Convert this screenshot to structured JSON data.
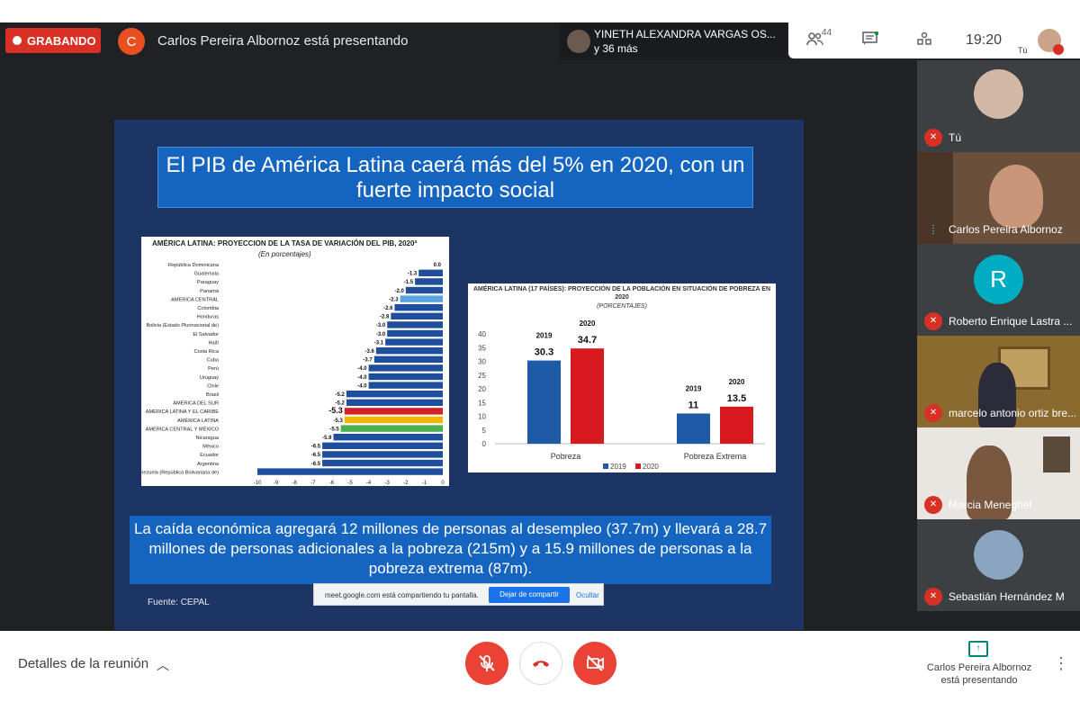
{
  "topbar": {
    "recording_label": "GRABANDO",
    "presenter_initial": "C",
    "presenting_text": "Carlos Pereira Albornoz está presentando",
    "participant_chip_line1": "YINETH ALEXANDRA VARGAS OS...",
    "participant_chip_line2": "y 36 más",
    "participant_count": "44",
    "clock": "19:20",
    "me_label": "Tú"
  },
  "slide": {
    "title": "El PIB de América Latina  caerá más del 5% en 2020, con un fuerte impacto social",
    "body_text": "La caída económica agregará 12 millones de personas al desempleo (37.7m) y llevará a 28.7 millones de personas adicionales a la pobreza (215m) y a 15.9 millones de personas a la pobreza extrema (87m).",
    "source": "Fuente: CEPAL",
    "chartA_title": "AMÉRICA LATINA: PROYECCION DE LA TASA DE VARIACIÓN DEL PIB, 2020ª",
    "chartA_subtitle": "(En porcentajes)",
    "chartB_title": "AMÉRICA LATINA (17 PAÍSES): PROYECCIÓN DE LA POBLACIÓN EN SITUACIÓN DE POBREZA EN 2020",
    "chartB_subtitle": "(PORCENTAJES)"
  },
  "chart_data": [
    {
      "type": "bar",
      "orientation": "horizontal",
      "title": "AMÉRICA LATINA: PROYECCION DE LA TASA DE VARIACIÓN DEL PIB, 2020ª",
      "subtitle": "(En porcentajes)",
      "categories": [
        "República Dominicana",
        "Guatemala",
        "Paraguay",
        "Panamá",
        "AMÉRICA CENTRAL",
        "Colombia",
        "Honduras",
        "Bolivia (Estado Plurinacional de)",
        "El Salvador",
        "Haití",
        "Costa Rica",
        "Cuba",
        "Perú",
        "Uruguay",
        "Chile",
        "Brasil",
        "AMÉRICA DEL SUR",
        "AMÉRICA LATINA Y EL CARIBE",
        "AMÉRICA LATINA",
        "AMÉRICA CENTRAL Y MÉXICO",
        "Nicaragua",
        "México",
        "Ecuador",
        "Argentina",
        "Venezuela (República Bolivariana de)"
      ],
      "values": [
        0.0,
        -1.3,
        -1.5,
        -2.0,
        -2.3,
        -2.6,
        -2.8,
        -3.0,
        -3.0,
        -3.1,
        -3.6,
        -3.7,
        -4.0,
        -4.0,
        -4.0,
        -5.2,
        -5.2,
        -5.3,
        -5.3,
        -5.5,
        -5.9,
        -6.5,
        -6.5,
        -6.5,
        -10
      ],
      "value_labels": [
        "0.0",
        "-1.3",
        "-1.5",
        "-2.0",
        "-2.3",
        "-2.6",
        "-2.8",
        "-3.0",
        "-3.0",
        "-3.1",
        "-3.6",
        "-3.7",
        "-4.0",
        "-4.0",
        "-4.0",
        "-5.2",
        "-5.2",
        "-5.3",
        "-5.3",
        "-5.5",
        "-5.9",
        "-6.5",
        "-6.5",
        "-6.5",
        ""
      ],
      "bar_colors": [
        "#1f4e9c",
        "#1f4e9c",
        "#1f4e9c",
        "#1f4e9c",
        "#5ba3dc",
        "#1f4e9c",
        "#1f4e9c",
        "#1f4e9c",
        "#1f4e9c",
        "#1f4e9c",
        "#1f4e9c",
        "#1f4e9c",
        "#1f4e9c",
        "#1f4e9c",
        "#1f4e9c",
        "#1f4e9c",
        "#1f4e9c",
        "#d71f26",
        "#f2b705",
        "#4caf50",
        "#1f4e9c",
        "#1f4e9c",
        "#1f4e9c",
        "#1f4e9c",
        "#1f4e9c"
      ],
      "xticks": [
        "-10",
        "-9",
        "-8",
        "-7",
        "-6",
        "-5",
        "-4",
        "-3",
        "-2",
        "-1",
        "0"
      ],
      "xlim": [
        -10,
        0
      ]
    },
    {
      "type": "bar",
      "title": "AMÉRICA LATINA (17 PAÍSES): PROYECCIÓN DE LA POBLACIÓN EN SITUACIÓN DE POBREZA EN 2020",
      "subtitle": "(PORCENTAJES)",
      "categories": [
        "Pobreza",
        "Pobreza Extrema"
      ],
      "series": [
        {
          "name": "2019",
          "values": [
            30.3,
            11
          ],
          "color": "#1f5aa6"
        },
        {
          "name": "2020",
          "values": [
            34.7,
            13.5
          ],
          "color": "#d71920"
        }
      ],
      "value_labels": [
        [
          "30.3",
          "11"
        ],
        [
          "34.7",
          "13.5"
        ]
      ],
      "yticks": [
        "0",
        "5",
        "10",
        "15",
        "20",
        "25",
        "30",
        "35",
        "40"
      ],
      "ylim": [
        0,
        40
      ],
      "legend": "bottom"
    }
  ],
  "share_bar": {
    "message": "meet.google.com está compartiendo tu pantalla.",
    "stop_label": "Dejar de compartir",
    "hide_label": "Ocultar"
  },
  "participants": [
    {
      "name": "Tú",
      "initial": ""
    },
    {
      "name": "Carlos Pereira Albornoz",
      "initial": ""
    },
    {
      "name": "Roberto Enrique Lastra ...",
      "initial": "R"
    },
    {
      "name": "marcelo antonio ortiz bre...",
      "initial": ""
    },
    {
      "name": "Marcia Meneghel",
      "initial": ""
    },
    {
      "name": "Sebastián Hernández M",
      "initial": ""
    }
  ],
  "bottombar": {
    "details_label": "Detalles de la reunión",
    "presenting_label": "Carlos Pereira Albornoz está presentando"
  },
  "colors": {
    "danger": "#ea4335",
    "accent": "#1a73e8",
    "stage": "#202124",
    "slide_bg": "#1c3564"
  }
}
